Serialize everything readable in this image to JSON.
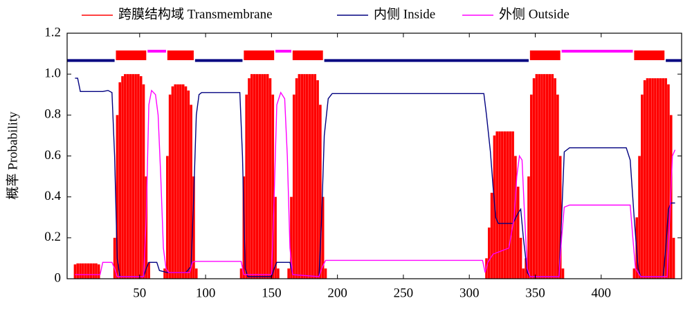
{
  "chart_data": {
    "type": "probability-profile",
    "ylabel": "概率 Probability",
    "xlim": [
      -5,
      461
    ],
    "ylim": [
      0,
      1.2
    ],
    "xticks": [
      100,
      150,
      200,
      250,
      300,
      350,
      400,
      50
    ],
    "yticks": [
      0,
      0.2,
      0.4,
      0.6,
      0.8,
      {
        "value": 1,
        "label": "1.0"
      },
      1.2
    ],
    "series": [
      {
        "name": "跨膜结构域 Transmembrane",
        "color": "#ff0000",
        "style": "impulse",
        "x": [
          1,
          3,
          5,
          7,
          9,
          11,
          13,
          15,
          17,
          19,
          31,
          33,
          35,
          37,
          39,
          41,
          43,
          45,
          47,
          49,
          51,
          53,
          55,
          57,
          69,
          71,
          73,
          75,
          77,
          79,
          81,
          83,
          85,
          87,
          89,
          91,
          93,
          127,
          129,
          131,
          133,
          135,
          137,
          139,
          141,
          143,
          145,
          147,
          149,
          151,
          153,
          155,
          163,
          165,
          167,
          169,
          171,
          173,
          175,
          177,
          179,
          181,
          183,
          185,
          187,
          189,
          191,
          313,
          315,
          317,
          319,
          321,
          323,
          325,
          327,
          329,
          331,
          333,
          335,
          337,
          339,
          341,
          343,
          345,
          347,
          349,
          351,
          353,
          355,
          357,
          359,
          361,
          363,
          365,
          367,
          369,
          371,
          425,
          427,
          429,
          431,
          433,
          435,
          437,
          439,
          441,
          443,
          445,
          447,
          449,
          451,
          453,
          455
        ],
        "values": [
          0.07,
          0.075,
          0.075,
          0.075,
          0.075,
          0.075,
          0.075,
          0.075,
          0.075,
          0.07,
          0.2,
          0.8,
          0.96,
          0.99,
          1,
          1,
          1,
          1,
          1,
          1,
          0.99,
          0.95,
          0.5,
          0.08,
          0.05,
          0.6,
          0.9,
          0.94,
          0.95,
          0.95,
          0.95,
          0.95,
          0.94,
          0.92,
          0.85,
          0.5,
          0.05,
          0.05,
          0.5,
          0.9,
          0.98,
          1,
          1,
          1,
          1,
          1,
          1,
          1,
          0.98,
          0.9,
          0.4,
          0.05,
          0.05,
          0.4,
          0.9,
          0.98,
          1,
          1,
          1,
          1,
          1,
          1,
          1,
          0.97,
          0.85,
          0.4,
          0.05,
          0.1,
          0.25,
          0.42,
          0.7,
          0.72,
          0.72,
          0.72,
          0.72,
          0.72,
          0.72,
          0.72,
          0.6,
          0.45,
          0.2,
          0.05,
          0.1,
          0.5,
          0.9,
          0.98,
          1,
          1,
          1,
          1,
          1,
          1,
          1,
          0.98,
          0.9,
          0.6,
          0.05,
          0.05,
          0.3,
          0.6,
          0.9,
          0.97,
          0.98,
          0.98,
          0.98,
          0.98,
          0.98,
          0.98,
          0.98,
          0.98,
          0.95,
          0.8,
          0.2
        ],
        "segments": [
          [
            32,
            55
          ],
          [
            71,
            91
          ],
          [
            129,
            152
          ],
          [
            166,
            189
          ],
          [
            346,
            369
          ],
          [
            425,
            448
          ]
        ]
      },
      {
        "name": "内侧 Inside",
        "color": "#000080",
        "style": "line",
        "x": [
          1,
          3,
          5,
          22,
          26,
          29,
          31,
          33,
          35,
          53,
          55,
          57,
          63,
          65,
          71,
          85,
          89,
          91,
          93,
          95,
          97,
          126,
          128,
          130,
          132,
          150,
          152,
          154,
          164,
          166,
          186,
          188,
          190,
          193,
          196,
          311,
          313,
          316,
          318,
          320,
          322,
          333,
          337,
          339,
          341,
          344,
          346,
          368,
          370,
          372,
          376,
          419,
          422,
          425,
          428,
          430,
          447,
          449,
          451,
          453,
          456
        ],
        "values": [
          0.98,
          0.98,
          0.915,
          0.915,
          0.92,
          0.91,
          0.6,
          0.1,
          0.01,
          0.01,
          0.05,
          0.08,
          0.08,
          0.04,
          0.03,
          0.03,
          0.06,
          0.4,
          0.8,
          0.9,
          0.91,
          0.91,
          0.6,
          0.05,
          0.01,
          0.01,
          0.05,
          0.08,
          0.08,
          0.02,
          0.01,
          0.3,
          0.7,
          0.88,
          0.905,
          0.905,
          0.8,
          0.62,
          0.45,
          0.3,
          0.27,
          0.27,
          0.32,
          0.34,
          0.2,
          0.03,
          0.01,
          0.01,
          0.3,
          0.62,
          0.64,
          0.64,
          0.58,
          0.3,
          0.05,
          0.01,
          0.01,
          0.15,
          0.34,
          0.37,
          0.37
        ],
        "segments": [
          [
            -5,
            31
          ],
          [
            92,
            128
          ],
          [
            190,
            345
          ],
          [
            449,
            461
          ]
        ]
      },
      {
        "name": "外侧 Outside",
        "color": "#ff00ff",
        "style": "line",
        "x": [
          1,
          20,
          22,
          29,
          31,
          33,
          53,
          55,
          57,
          59,
          62,
          64,
          66,
          68,
          70,
          72,
          88,
          90,
          92,
          127,
          129,
          150,
          152,
          154,
          157,
          160,
          162,
          164,
          166,
          186,
          188,
          191,
          310,
          312,
          314,
          318,
          330,
          334,
          336,
          338,
          340,
          342,
          344,
          346,
          368,
          370,
          372,
          376,
          422,
          424,
          426,
          430,
          450,
          452,
          454,
          456
        ],
        "values": [
          0.02,
          0.02,
          0.08,
          0.08,
          0.05,
          0.01,
          0.01,
          0.3,
          0.85,
          0.92,
          0.9,
          0.8,
          0.5,
          0.15,
          0.05,
          0.03,
          0.03,
          0.08,
          0.085,
          0.085,
          0.02,
          0.02,
          0.4,
          0.85,
          0.91,
          0.88,
          0.6,
          0.15,
          0.02,
          0.01,
          0.05,
          0.09,
          0.09,
          0.03,
          0.08,
          0.12,
          0.15,
          0.3,
          0.5,
          0.6,
          0.58,
          0.3,
          0.05,
          0.01,
          0.01,
          0.2,
          0.35,
          0.36,
          0.36,
          0.2,
          0.05,
          0.01,
          0.01,
          0.3,
          0.6,
          0.63
        ],
        "segments": [
          [
            56,
            70
          ],
          [
            153,
            165
          ],
          [
            370,
            424
          ]
        ]
      }
    ]
  }
}
